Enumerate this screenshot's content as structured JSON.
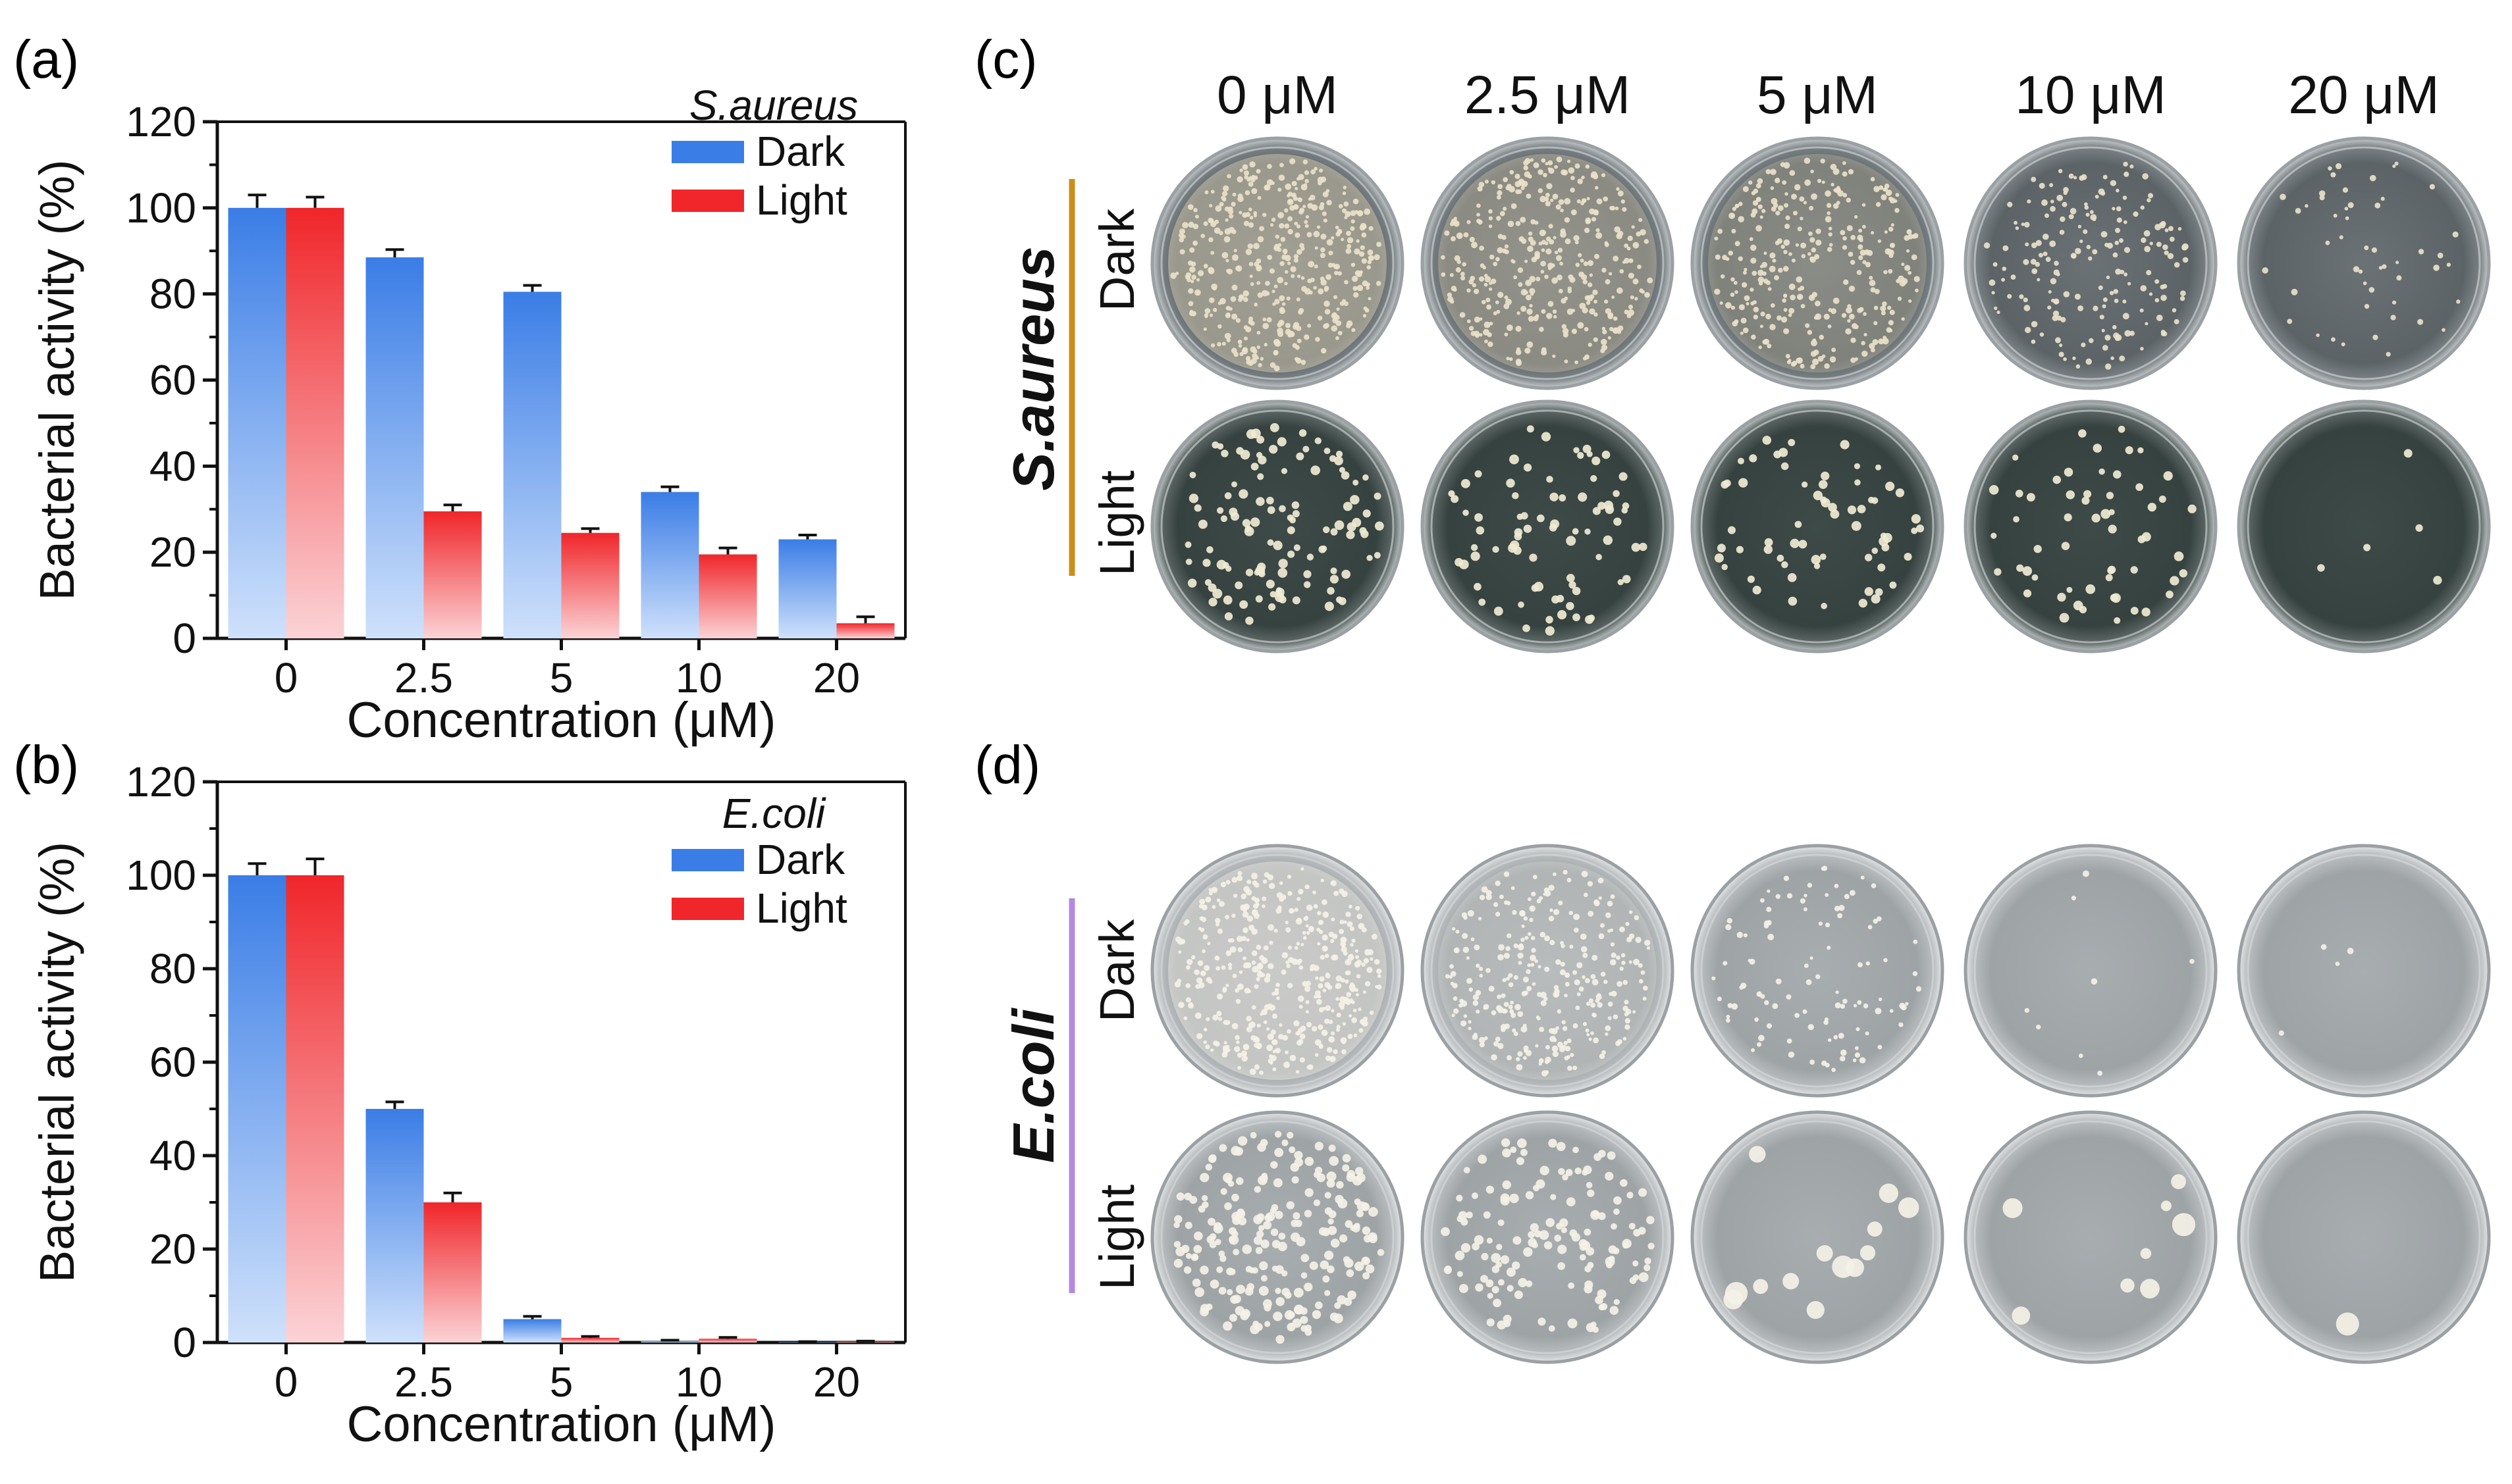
{
  "colors": {
    "dark_top": "#3a7de6",
    "dark_bottom": "#cfe1fb",
    "light_top": "#f0262a",
    "light_bottom": "#fbd3d6",
    "error": "#111111",
    "saureus_bar": "#c8901a",
    "ecoli_bar": "#b48ae0",
    "plate_rim": "#9aa0a3"
  },
  "chart_data": [
    {
      "type": "bar",
      "panel": "(a)",
      "legend_title": "S.aureus",
      "categories": [
        "0",
        "2.5",
        "5",
        "10",
        "20"
      ],
      "series": [
        {
          "name": "Dark",
          "values": [
            100,
            88.5,
            80.5,
            34,
            23
          ],
          "errors": [
            3,
            1.8,
            1.5,
            1.2,
            1.0
          ]
        },
        {
          "name": "Light",
          "values": [
            100,
            29.5,
            24.5,
            19.5,
            3.5
          ],
          "errors": [
            2.5,
            1.5,
            1.0,
            1.5,
            1.5
          ]
        }
      ],
      "xlabel": "Concentration (μM)",
      "ylabel": "Bacterial activity (%)",
      "ylim": [
        0,
        120
      ],
      "yticks": [
        "0",
        "20",
        "40",
        "60",
        "80",
        "100",
        "120"
      ],
      "legend_position": "top-right"
    },
    {
      "type": "bar",
      "panel": "(b)",
      "legend_title": "E.coli",
      "categories": [
        "0",
        "2.5",
        "5",
        "10",
        "20"
      ],
      "series": [
        {
          "name": "Dark",
          "values": [
            100,
            50,
            5,
            0.3,
            0.1
          ],
          "errors": [
            2.5,
            1.5,
            0.6,
            0.2,
            0.1
          ]
        },
        {
          "name": "Light",
          "values": [
            100,
            30,
            1,
            0.8,
            0.2
          ],
          "errors": [
            3.5,
            2.0,
            0.3,
            0.3,
            0.1
          ]
        }
      ],
      "xlabel": "Concentration (μM)",
      "ylabel": "Bacterial activity (%)",
      "ylim": [
        0,
        120
      ],
      "yticks": [
        "0",
        "20",
        "40",
        "60",
        "80",
        "100",
        "120"
      ],
      "legend_position": "top-right"
    }
  ],
  "plates": {
    "panel_c": "(c)",
    "panel_d": "(d)",
    "concentrations": [
      "0 μM",
      "2.5 μM",
      "5 μM",
      "10 μM",
      "20 μM"
    ],
    "saureus_label": "S.aureus",
    "ecoli_label": "E.coli",
    "row_dark": "Dark",
    "row_light": "Light",
    "colony_density": {
      "saureus_dark": [
        1.0,
        0.85,
        0.75,
        0.45,
        0.12
      ],
      "saureus_light": [
        0.45,
        0.3,
        0.25,
        0.22,
        0.02
      ],
      "ecoli_dark": [
        1.0,
        0.7,
        0.25,
        0.02,
        0.01
      ],
      "ecoli_light": [
        0.85,
        0.55,
        0.05,
        0.03,
        0.005
      ]
    }
  }
}
